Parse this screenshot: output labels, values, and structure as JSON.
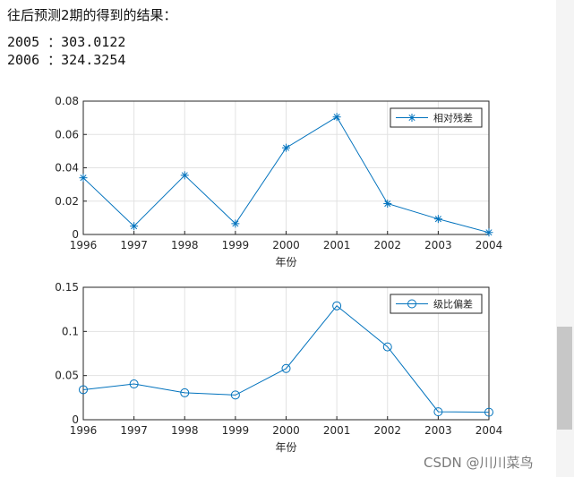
{
  "intro_text": "往后预测2期的得到的结果：",
  "forecast_lines": [
    "2005 ：303.0122",
    "2006 ：324.3254"
  ],
  "watermark": "CSDN @川川菜鸟",
  "colors": {
    "series": "#0072bd",
    "grid": "#e2e2e2",
    "axis": "#262626"
  },
  "chart_data": [
    {
      "type": "line",
      "marker": "asterisk",
      "x": [
        1996,
        1997,
        1998,
        1999,
        2000,
        2001,
        2002,
        2003,
        2004
      ],
      "series": [
        {
          "name": "相对残差",
          "values": [
            0.034,
            0.005,
            0.0355,
            0.0065,
            0.052,
            0.0705,
            0.0185,
            0.0093,
            0.0012
          ]
        }
      ],
      "xlabel": "年份",
      "ylabel": "",
      "xlim": [
        1996,
        2004
      ],
      "ylim": [
        0,
        0.08
      ],
      "xticks": [
        "1996",
        "1997",
        "1998",
        "1999",
        "2000",
        "2001",
        "2002",
        "2003",
        "2004"
      ],
      "yticks": [
        "0",
        "0.02",
        "0.04",
        "0.06",
        "0.08"
      ],
      "ytick_values": [
        0,
        0.02,
        0.04,
        0.06,
        0.08
      ],
      "grid": true,
      "legend_position": "top-right"
    },
    {
      "type": "line",
      "marker": "circle",
      "x": [
        1996,
        1997,
        1998,
        1999,
        2000,
        2001,
        2002,
        2003,
        2004
      ],
      "series": [
        {
          "name": "级比偏差",
          "values": [
            0.034,
            0.0405,
            0.0305,
            0.028,
            0.058,
            0.129,
            0.0825,
            0.009,
            0.0085
          ]
        }
      ],
      "xlabel": "年份",
      "ylabel": "",
      "xlim": [
        1996,
        2004
      ],
      "ylim": [
        0,
        0.15
      ],
      "xticks": [
        "1996",
        "1997",
        "1998",
        "1999",
        "2000",
        "2001",
        "2002",
        "2003",
        "2004"
      ],
      "yticks": [
        "0",
        "0.05",
        "0.1",
        "0.15"
      ],
      "ytick_values": [
        0,
        0.05,
        0.1,
        0.15
      ],
      "grid": true,
      "legend_position": "top-right"
    }
  ]
}
